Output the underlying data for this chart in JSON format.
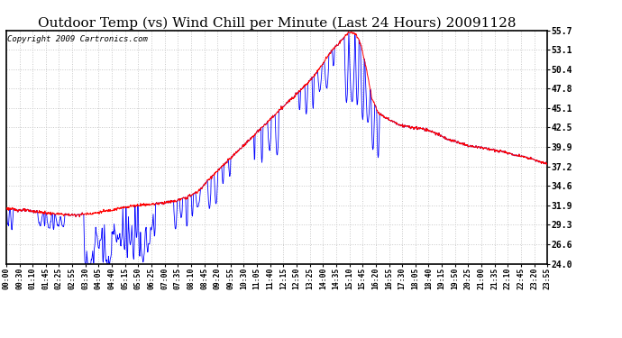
{
  "title": "Outdoor Temp (vs) Wind Chill per Minute (Last 24 Hours) 20091128",
  "copyright": "Copyright 2009 Cartronics.com",
  "yticks": [
    24.0,
    26.6,
    29.3,
    31.9,
    34.6,
    37.2,
    39.9,
    42.5,
    45.1,
    47.8,
    50.4,
    53.1,
    55.7
  ],
  "ylim": [
    24.0,
    55.7
  ],
  "xtick_labels": [
    "00:00",
    "00:30",
    "01:10",
    "01:45",
    "02:25",
    "02:55",
    "03:30",
    "04:05",
    "04:40",
    "05:15",
    "05:50",
    "06:25",
    "07:00",
    "07:35",
    "08:10",
    "08:45",
    "09:20",
    "09:55",
    "10:30",
    "11:05",
    "11:40",
    "12:15",
    "12:50",
    "13:25",
    "14:00",
    "14:35",
    "15:10",
    "15:45",
    "16:20",
    "16:55",
    "17:30",
    "18:05",
    "18:40",
    "19:15",
    "19:50",
    "20:25",
    "21:00",
    "21:35",
    "22:10",
    "22:45",
    "23:20",
    "23:55"
  ],
  "bg_color": "#ffffff",
  "grid_color": "#c8c8c8",
  "temp_color": "#ff0000",
  "windchill_color": "#0000ff",
  "title_fontsize": 11,
  "copyright_fontsize": 6.5
}
